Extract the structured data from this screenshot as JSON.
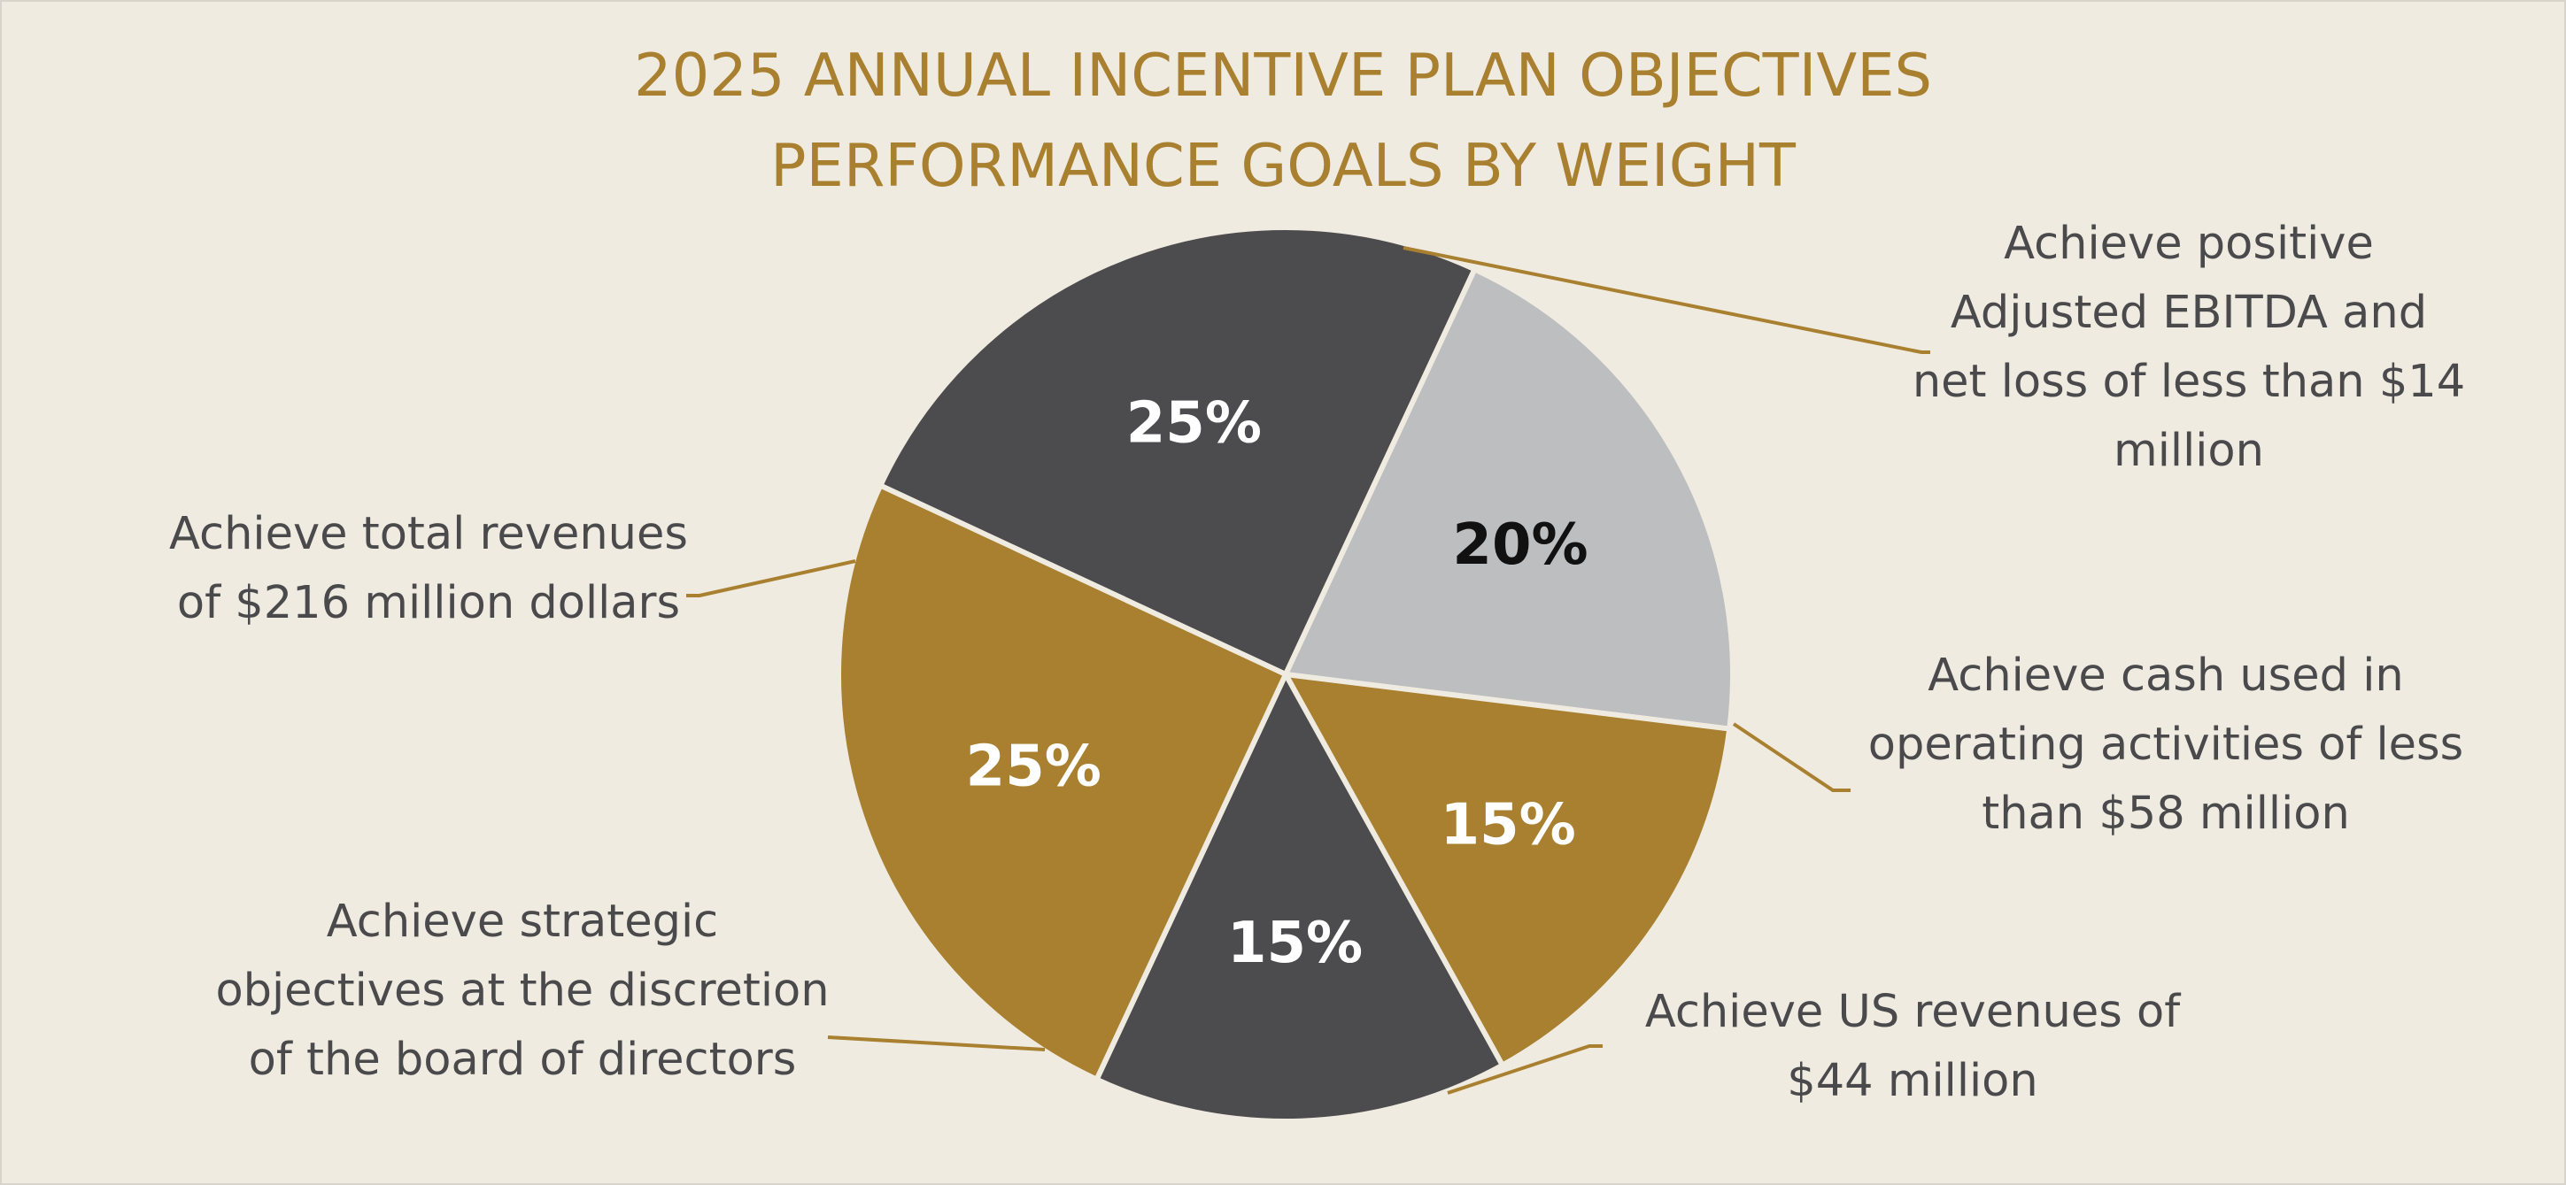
{
  "colors": {
    "background": "#f0ebe1",
    "dark": "#4c4c4e",
    "gold": "#a8802f",
    "light": "#bdbec0",
    "label_text": "#4a4a4c",
    "leader": "#a8802f"
  },
  "chart_data": {
    "type": "pie",
    "title": [
      "2025 ANNUAL INCENTIVE PLAN OBJECTIVES",
      "PERFORMANCE GOALS BY WEIGHT"
    ],
    "slices": [
      {
        "value": 25,
        "label": "25%",
        "color": "#4c4c4e",
        "label_color": "#ffffff",
        "category": [
          "Achieve positive",
          "Adjusted EBITDA and",
          "net loss of less than $14",
          "million"
        ]
      },
      {
        "value": 20,
        "label": "20%",
        "color": "#bdbec0",
        "label_color": "#111111",
        "category": [
          "Achieve cash used in",
          "operating activities of less",
          "than $58 million"
        ]
      },
      {
        "value": 15,
        "label": "15%",
        "color": "#a8802f",
        "label_color": "#ffffff",
        "category": [
          "Achieve US revenues of",
          "$44 million"
        ]
      },
      {
        "value": 15,
        "label": "15%",
        "color": "#4c4c4e",
        "label_color": "#ffffff",
        "category": [
          "Achieve strategic",
          "objectives at the discretion",
          "of the board of directors"
        ]
      },
      {
        "value": 25,
        "label": "25%",
        "color": "#a8802f",
        "label_color": "#ffffff",
        "category": [
          "Achieve total revenues",
          "of $216 million dollars"
        ]
      }
    ]
  }
}
